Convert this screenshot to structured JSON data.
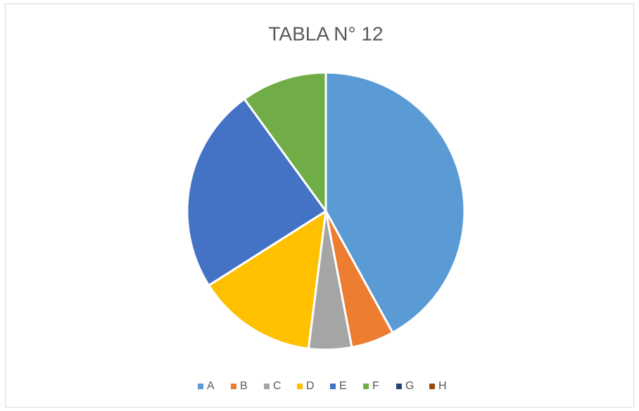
{
  "chart_data": {
    "type": "pie",
    "title": "TABLA N° 12",
    "categories": [
      "A",
      "B",
      "C",
      "D",
      "E",
      "F",
      "G",
      "H"
    ],
    "values": [
      42,
      5,
      5,
      14,
      24,
      10,
      0,
      0
    ],
    "colors": [
      "#5b9bd5",
      "#ed7d31",
      "#a5a5a5",
      "#ffc000",
      "#4472c4",
      "#70ad47",
      "#264478",
      "#9e480e"
    ],
    "legend": "bottom"
  }
}
